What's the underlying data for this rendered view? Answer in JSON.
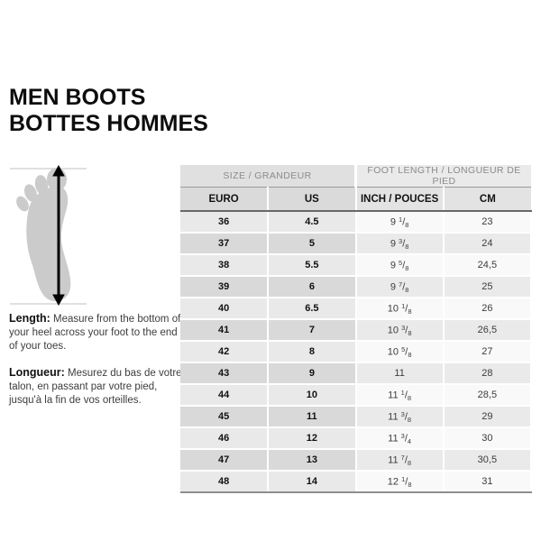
{
  "title": {
    "line1": "MEN BOOTS",
    "line2": "BOTTES HOMMES"
  },
  "instructions": {
    "length_label": "Length:",
    "length_text": "Measure from the bottom of your heel across your foot to the end of your toes.",
    "longueur_label": "Longueur:",
    "longueur_text": "Mesurez du bas de votre talon, en passant par votre pied, jusqu'à la fin de vos orteilles."
  },
  "icons": {
    "foot_illustration": "foot-sole-with-vertical-double-arrow-measure"
  },
  "colors": {
    "background": "#ffffff",
    "title_text": "#0d0d0d",
    "group_header_bg_left": "#e0e0e0",
    "group_header_bg_right": "#eaeaea",
    "group_header_text": "#8b8b8b",
    "subheader_bg_left": "#dadada",
    "subheader_bg_right": "#e3e3e3",
    "row_light_left": "#e9e9e9",
    "row_dark_left": "#d9d9d9",
    "row_light_right": "#f9f9f9",
    "row_dark_right": "#eaeaea",
    "header_rule": "#686868",
    "table_bottom_rule": "#8e8e8e",
    "foot_gray": "#cbcbcb",
    "arrow_black": "#000000"
  },
  "chart_data": {
    "type": "table",
    "title": "MEN BOOTS / BOTTES HOMMES",
    "group_headers": [
      "SIZE / GRANDEUR",
      "FOOT LENGTH / LONGUEUR DE PIED"
    ],
    "columns": [
      "EURO",
      "US",
      "INCH / POUCES",
      "CM"
    ],
    "rows": [
      [
        "36",
        "4.5",
        "9 1/8",
        "23"
      ],
      [
        "37",
        "5",
        "9 3/8",
        "24"
      ],
      [
        "38",
        "5.5",
        "9 5/8",
        "24,5"
      ],
      [
        "39",
        "6",
        "9 7/8",
        "25"
      ],
      [
        "40",
        "6.5",
        "10 1/8",
        "26"
      ],
      [
        "41",
        "7",
        "10 3/8",
        "26,5"
      ],
      [
        "42",
        "8",
        "10 5/8",
        "27"
      ],
      [
        "43",
        "9",
        "11",
        "28"
      ],
      [
        "44",
        "10",
        "11 1/8",
        "28,5"
      ],
      [
        "45",
        "11",
        "11 3/8",
        "29"
      ],
      [
        "46",
        "12",
        "11 3/4",
        "30"
      ],
      [
        "47",
        "13",
        "11 7/8",
        "30,5"
      ],
      [
        "48",
        "14",
        "12 1/8",
        "31"
      ]
    ]
  }
}
